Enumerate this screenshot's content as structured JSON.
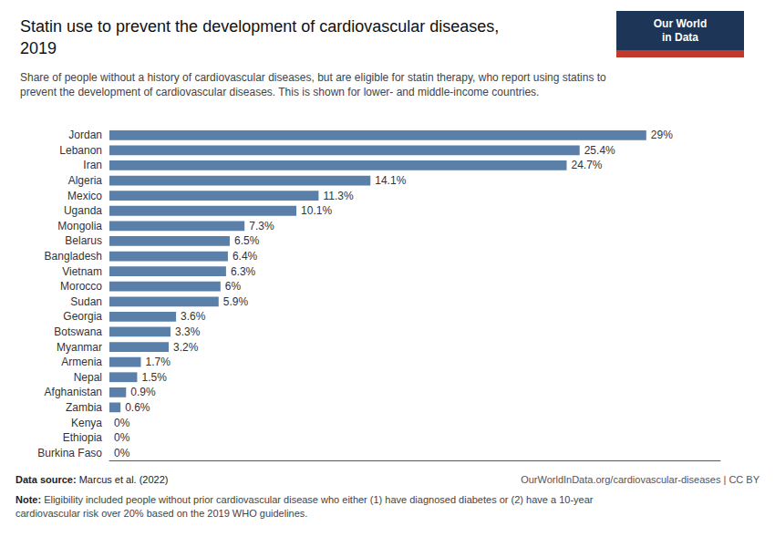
{
  "chart_data": {
    "type": "bar",
    "orientation": "horizontal",
    "title": "Statin use to prevent the development of cardiovascular diseases,\n2019",
    "subtitle": "Share of people without a history of cardiovascular diseases, but are eligible for statin therapy, who report using statins to\nprevent the development of cardiovascular diseases. This is shown for lower- and middle-income countries.",
    "categories": [
      "Jordan",
      "Lebanon",
      "Iran",
      "Algeria",
      "Mexico",
      "Uganda",
      "Mongolia",
      "Belarus",
      "Bangladesh",
      "Vietnam",
      "Morocco",
      "Sudan",
      "Georgia",
      "Botswana",
      "Myanmar",
      "Armenia",
      "Nepal",
      "Afghanistan",
      "Zambia",
      "Kenya",
      "Ethiopia",
      "Burkina Faso"
    ],
    "values": [
      29.0,
      25.4,
      24.7,
      14.1,
      11.3,
      10.1,
      7.3,
      6.5,
      6.4,
      6.3,
      6.0,
      5.9,
      3.6,
      3.3,
      3.2,
      1.7,
      1.5,
      0.9,
      0.6,
      0.0,
      0.0,
      0.0
    ],
    "value_labels": [
      "29%",
      "25.4%",
      "24.7%",
      "14.1%",
      "11.3%",
      "10.1%",
      "7.3%",
      "6.5%",
      "6.4%",
      "6.3%",
      "6%",
      "5.9%",
      "3.6%",
      "3.3%",
      "3.2%",
      "1.7%",
      "1.5%",
      "0.9%",
      "0.6%",
      "0%",
      "0%",
      "0%"
    ],
    "color": "#5a7fa8",
    "xlim": [
      0,
      33
    ],
    "grid": false,
    "data_labels": true,
    "tick_labels": "y",
    "annotations": [
      "Data source: Marcus et al. (2022)",
      "OurWorldInData.org/cardiovascular-diseases | CC BY",
      "Note: Eligibility included people without prior cardiovascular disease who either (1) have diagnosed diabetes or (2) have a 10-year\ncardiovascular risk over 20% based on the 2019 WHO guidelines.",
      "Our World\nin Data"
    ]
  }
}
